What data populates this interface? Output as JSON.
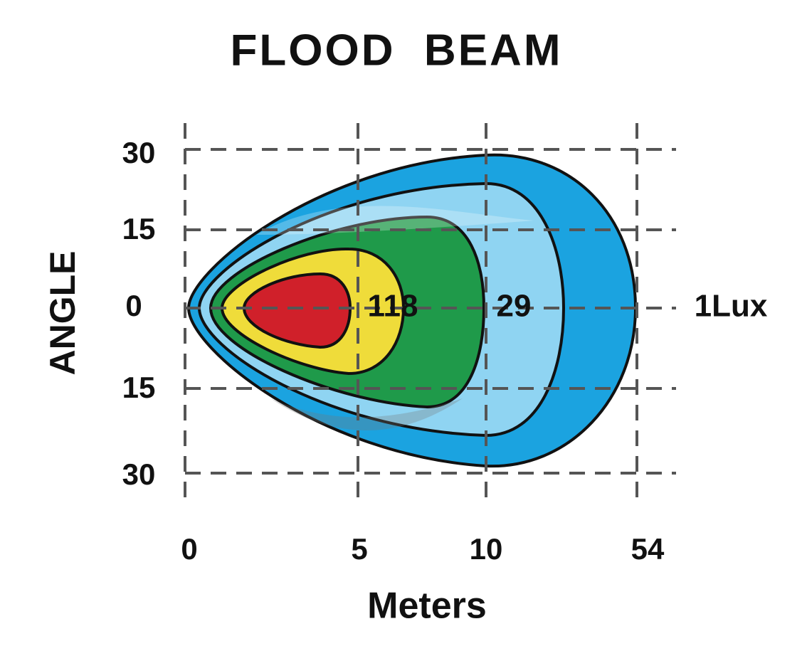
{
  "title": "FLOOD  BEAM",
  "y_axis": {
    "title": "ANGLE",
    "labels": [
      "30",
      "15",
      "0",
      "15",
      "30"
    ]
  },
  "x_axis": {
    "title": "Meters",
    "labels": [
      "0",
      "5",
      "10",
      "54"
    ]
  },
  "contour_labels": [
    "118",
    "29",
    "1Lux"
  ]
}
